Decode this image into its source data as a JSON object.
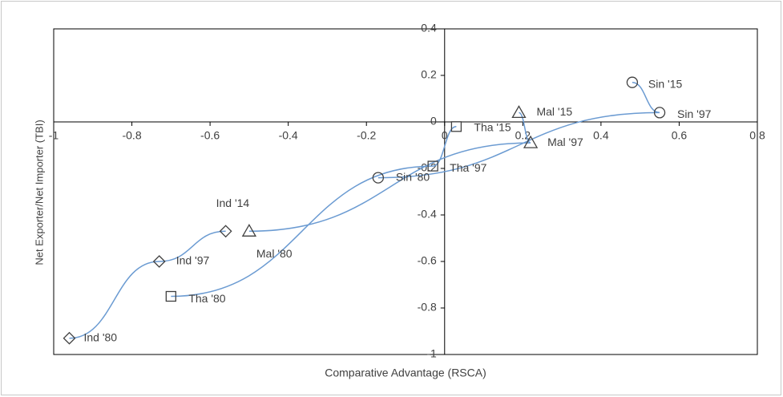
{
  "chart_data": {
    "type": "scatter",
    "xlabel": "Comparative Advantage (RSCA)",
    "ylabel": "Net Exporter/Net Importer (TBI)",
    "xlim": [
      -1,
      0.8
    ],
    "ylim": [
      -1,
      0.4
    ],
    "xticks": [
      -1,
      -0.8,
      -0.6,
      -0.4,
      -0.2,
      0,
      0.2,
      0.4,
      0.6,
      0.8
    ],
    "yticks": [
      -1,
      -0.8,
      -0.6,
      -0.4,
      -0.2,
      0,
      0.2,
      0.4
    ],
    "line_color": "#6b9bd2",
    "marker_color": "#404040",
    "series": [
      {
        "marker": "diamond",
        "labels": [
          "Ind '80",
          "Ind '97",
          "Ind '14"
        ],
        "x": [
          -0.96,
          -0.73,
          -0.56
        ],
        "values": [
          -0.93,
          -0.6,
          -0.47
        ]
      },
      {
        "marker": "triangle",
        "labels": [
          "Mal '80",
          "Mal '97",
          "Mal '15"
        ],
        "x": [
          -0.5,
          0.22,
          0.19
        ],
        "values": [
          -0.47,
          -0.09,
          0.04
        ]
      },
      {
        "marker": "square",
        "labels": [
          "Tha '80",
          "Tha '97",
          "Tha '15"
        ],
        "x": [
          -0.7,
          -0.03,
          0.03
        ],
        "values": [
          -0.75,
          -0.19,
          -0.02
        ]
      },
      {
        "marker": "circle",
        "labels": [
          "Sin '80",
          "Sin '97",
          "Sin '15"
        ],
        "x": [
          -0.17,
          0.55,
          0.48
        ],
        "values": [
          -0.24,
          0.04,
          0.17
        ]
      }
    ]
  }
}
